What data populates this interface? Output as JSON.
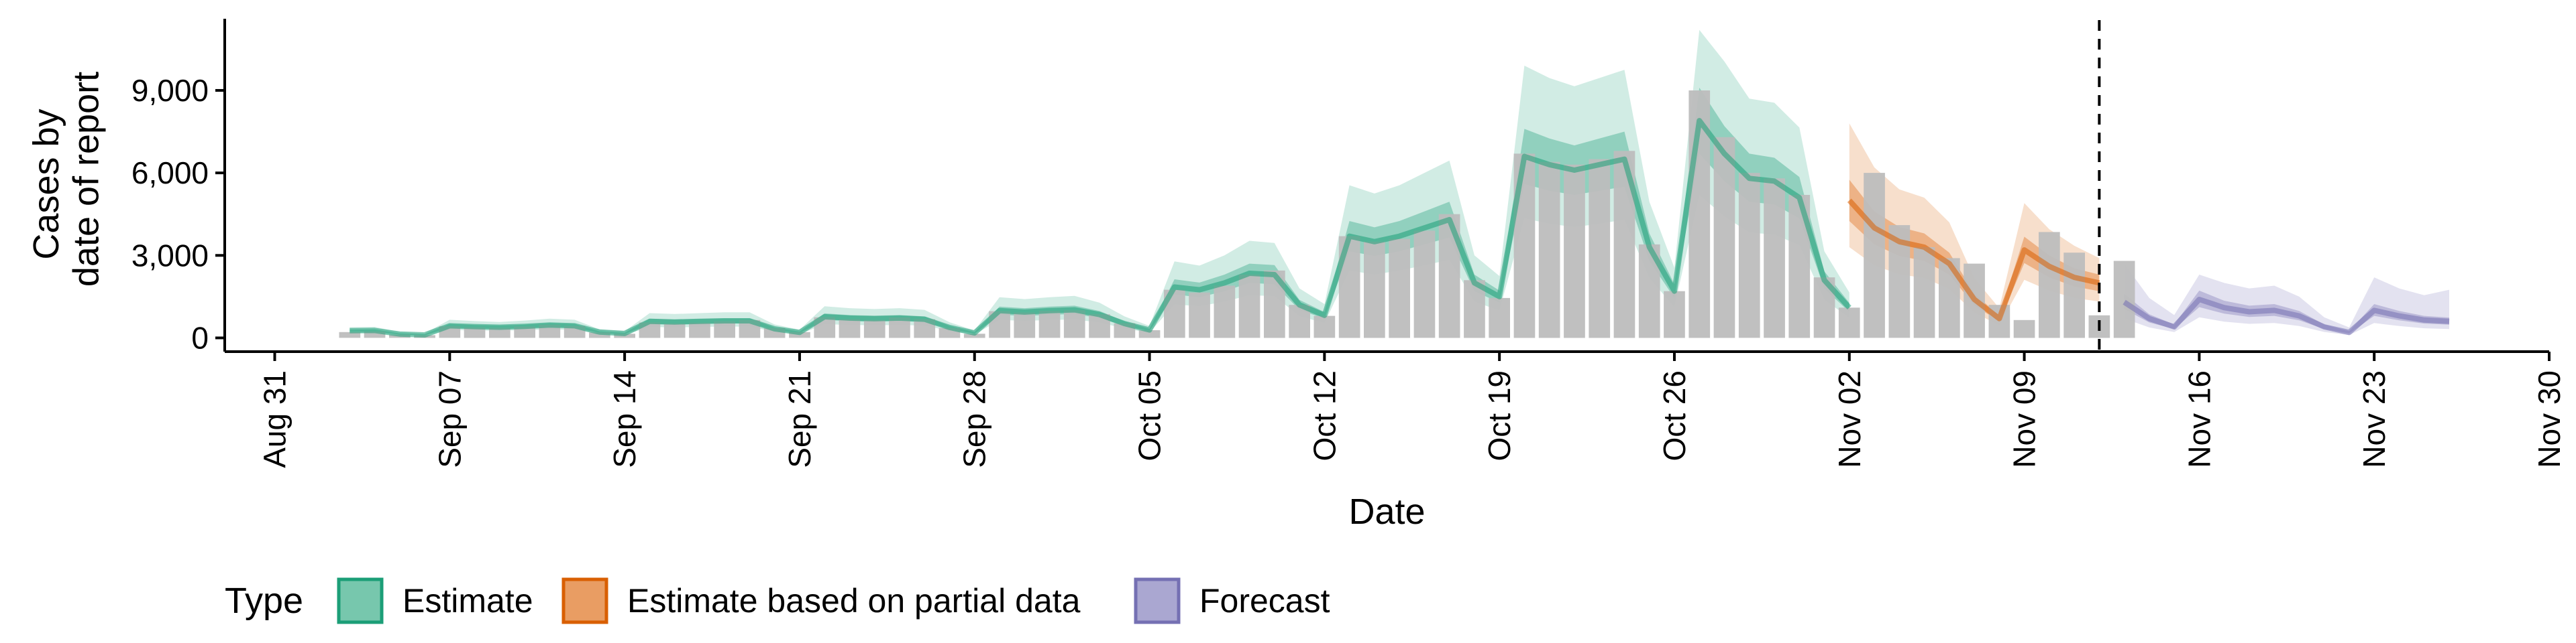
{
  "chart_data": {
    "type": "bar",
    "xlabel": "Date",
    "ylabel": [
      "Cases by",
      "date of report"
    ],
    "y_ticks": [
      0,
      3000,
      6000,
      9000
    ],
    "y_tick_labels": [
      "0",
      "3,000",
      "6,000",
      "9,000"
    ],
    "ylim": [
      -500,
      11800
    ],
    "x_range": [
      "2020-08-29",
      "2020-11-30"
    ],
    "x_ticks": [
      "2020-08-31",
      "2020-09-07",
      "2020-09-14",
      "2020-09-21",
      "2020-09-28",
      "2020-10-05",
      "2020-10-12",
      "2020-10-19",
      "2020-10-26",
      "2020-11-02",
      "2020-11-09",
      "2020-11-16",
      "2020-11-23",
      "2020-11-30"
    ],
    "x_tick_labels": [
      "Aug 31",
      "Sep 07",
      "Sep 14",
      "Sep 21",
      "Sep 28",
      "Oct 05",
      "Oct 12",
      "Oct 19",
      "Oct 26",
      "Nov 02",
      "Nov 09",
      "Nov 16",
      "Nov 23",
      "Nov 30"
    ],
    "forecast_start": "2020-11-12",
    "grid": false,
    "legend_position": "bottom",
    "legend": {
      "title": "Type",
      "items": [
        {
          "label": "Estimate",
          "color": "#1b9e77",
          "fill": "#77c7ad"
        },
        {
          "label": "Estimate based on partial data",
          "color": "#d95f02",
          "fill": "#e99d63"
        },
        {
          "label": "Forecast",
          "color": "#7570b3",
          "fill": "#aaa7d1"
        }
      ]
    },
    "bar_color": "#bdbdbd",
    "bars": {
      "start": "2020-09-03",
      "values": [
        210,
        230,
        120,
        100,
        420,
        380,
        370,
        410,
        480,
        430,
        200,
        150,
        560,
        520,
        550,
        600,
        650,
        360,
        210,
        750,
        680,
        650,
        740,
        680,
        360,
        150,
        970,
        920,
        980,
        1000,
        860,
        530,
        280,
        1750,
        1650,
        1900,
        2300,
        2450,
        1200,
        800,
        3700,
        3500,
        3600,
        3900,
        4500,
        2100,
        1450,
        6700,
        6400,
        6300,
        6500,
        6800,
        3400,
        1700,
        9000,
        7300,
        6000,
        5800,
        5200,
        2200,
        1100,
        6000,
        4100,
        3300,
        2900,
        2700,
        1200,
        650,
        3850,
        3100,
        820,
        2800
      ]
    },
    "series": [
      {
        "name": "Estimate",
        "start": "2020-09-03",
        "median": [
          260,
          270,
          140,
          110,
          440,
          410,
          390,
          420,
          470,
          440,
          210,
          160,
          600,
          580,
          600,
          620,
          620,
          330,
          200,
          770,
          720,
          700,
          720,
          680,
          380,
          180,
          990,
          940,
          990,
          1020,
          850,
          520,
          290,
          1850,
          1750,
          2000,
          2350,
          2300,
          1200,
          820,
          3700,
          3500,
          3700,
          4000,
          4300,
          2000,
          1500,
          6600,
          6300,
          6100,
          6300,
          6500,
          3300,
          1700,
          7900,
          6700,
          5800,
          5700,
          5100,
          2100,
          1100
        ],
        "bands": [
          {
            "lower": [
              220,
              230,
              120,
              95,
              370,
              350,
              330,
              360,
              400,
              370,
              180,
              135,
              500,
              490,
              510,
              530,
              530,
              280,
              170,
              650,
              610,
              590,
              610,
              580,
              320,
              150,
              840,
              800,
              840,
              870,
              720,
              440,
              250,
              1580,
              1480,
              1700,
              2000,
              1950,
              1020,
              700,
              3150,
              2980,
              3150,
              3400,
              3650,
              1700,
              1280,
              5600,
              5350,
              5200,
              5350,
              5500,
              2800,
              1450,
              6700,
              5700,
              4950,
              4850,
              4350,
              1800,
              940
            ],
            "upper": [
              300,
              310,
              165,
              130,
              510,
              470,
              450,
              480,
              540,
              510,
              240,
              185,
              700,
              670,
              690,
              710,
              710,
              380,
              230,
              890,
              830,
              810,
              830,
              780,
              440,
              210,
              1140,
              1080,
              1140,
              1170,
              980,
              600,
              330,
              2130,
              2010,
              2300,
              2700,
              2650,
              1380,
              940,
              4250,
              4020,
              4250,
              4600,
              4950,
              2300,
              1720,
              7600,
              7250,
              7000,
              7250,
              7500,
              3800,
              1950,
              9100,
              7700,
              6700,
              6550,
              5850,
              2420,
              1270
            ]
          },
          {
            "lower": [
              170,
              180,
              95,
              75,
              290,
              270,
              260,
              280,
              310,
              290,
              140,
              105,
              400,
              380,
              400,
              410,
              410,
              220,
              130,
              500,
              470,
              460,
              470,
              450,
              250,
              120,
              650,
              620,
              650,
              670,
              560,
              340,
              190,
              1220,
              1150,
              1320,
              1550,
              1520,
              790,
              540,
              2450,
              2300,
              2450,
              2640,
              2840,
              1320,
              990,
              4350,
              4150,
              4030,
              4150,
              4300,
              2180,
              1120,
              5200,
              4420,
              3830,
              3760,
              3370,
              1390,
              730
            ],
            "upper": [
              390,
              400,
              210,
              165,
              660,
              610,
              580,
              630,
              700,
              660,
              310,
              240,
              900,
              870,
              900,
              930,
              930,
              490,
              300,
              1150,
              1080,
              1050,
              1080,
              1020,
              570,
              270,
              1480,
              1410,
              1480,
              1530,
              1280,
              780,
              435,
              2780,
              2630,
              3000,
              3530,
              3450,
              1800,
              1230,
              5550,
              5250,
              5550,
              6000,
              6450,
              3000,
              2250,
              9900,
              9450,
              9150,
              9450,
              9750,
              4950,
              2550,
              11200,
              10050,
              8700,
              8550,
              7650,
              3150,
              1650
            ]
          }
        ]
      },
      {
        "name": "Estimate based on partial data",
        "start": "2020-11-02",
        "median": [
          5000,
          4000,
          3500,
          3300,
          2700,
          1400,
          700,
          3200,
          2600,
          2200,
          2000
        ],
        "bands": [
          {
            "lower": [
              4250,
              3400,
              2980,
              2800,
              2300,
              1190,
              590,
              2720,
              2200,
              1870,
              1700
            ],
            "upper": [
              5750,
              4600,
              4030,
              3800,
              3100,
              1610,
              810,
              3680,
              3000,
              2530,
              2300
            ]
          },
          {
            "lower": [
              3300,
              2640,
              2310,
              2180,
              1780,
              920,
              460,
              2110,
              1720,
              1450,
              1320
            ],
            "upper": [
              7800,
              6200,
              5400,
              5100,
              4200,
              2170,
              1080,
              4900,
              3950,
              3350,
              2900
            ]
          }
        ]
      },
      {
        "name": "Forecast",
        "start": "2020-11-13",
        "median": [
          1300,
          700,
          400,
          1400,
          1100,
          950,
          1000,
          800,
          400,
          200,
          1000,
          800,
          650,
          600
        ],
        "bands": [
          {
            "lower": [
              1050,
              560,
              320,
              1120,
              880,
              760,
              800,
              640,
              320,
              160,
              800,
              640,
              520,
              480
            ],
            "upper": [
              1600,
              860,
              490,
              1720,
              1350,
              1170,
              1230,
              980,
              490,
              250,
              1230,
              980,
              800,
              740
            ]
          },
          {
            "lower": [
              700,
              380,
              210,
              750,
              590,
              510,
              540,
              430,
              215,
              105,
              540,
              430,
              350,
              320
            ],
            "upper": [
              2700,
              1450,
              830,
              2300,
              2000,
              1800,
              1900,
              1500,
              750,
              380,
              2200,
              1800,
              1550,
              1750
            ]
          }
        ]
      }
    ]
  }
}
